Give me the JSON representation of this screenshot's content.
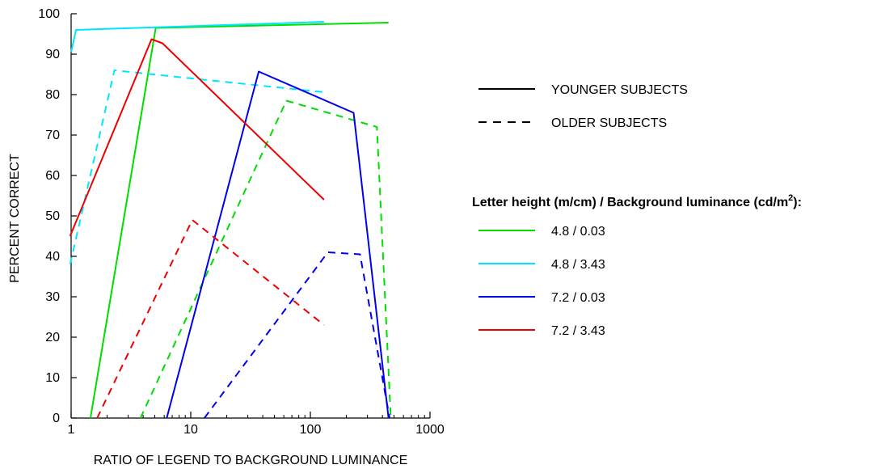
{
  "chart_data": {
    "type": "line",
    "xlabel": "RATIO OF LEGEND TO BACKGROUND LUMINANCE",
    "ylabel": "PERCENT CORRECT",
    "x_scale": "log",
    "xlim": [
      1,
      1000
    ],
    "ylim": [
      0,
      100
    ],
    "x_ticks": [
      1,
      10,
      100,
      1000
    ],
    "x_tick_labels": [
      "1",
      "10",
      "100",
      "1000"
    ],
    "y_ticks": [
      0,
      10,
      20,
      30,
      40,
      50,
      60,
      70,
      80,
      90,
      100
    ],
    "y_tick_labels": [
      "0",
      "10",
      "20",
      "30",
      "40",
      "50",
      "60",
      "70",
      "80",
      "90",
      "100"
    ],
    "grid": false,
    "legend_style": {
      "solid_label": "YOUNGER SUBJECTS",
      "dashed_label": "OLDER SUBJECTS"
    },
    "legend_heading_main": "Letter height (m/cm) / Background luminance (cd/m",
    "legend_heading_sup": "2",
    "legend_heading_end": "):",
    "legend_placement": "right",
    "series": [
      {
        "name": "4.8 / 0.03",
        "color": "#00dd00",
        "style": "solid",
        "points": [
          [
            1.45,
            0
          ],
          [
            5.1,
            96.5
          ],
          [
            450,
            97.8
          ]
        ]
      },
      {
        "name": "4.8 / 0.03",
        "color": "#00dd00",
        "style": "dashed",
        "points": [
          [
            3.8,
            0
          ],
          [
            63,
            78.5
          ],
          [
            360,
            72
          ],
          [
            470,
            0
          ]
        ]
      },
      {
        "name": "4.8 / 3.43",
        "color": "#00e5ff",
        "style": "solid",
        "points": [
          [
            1,
            90.5
          ],
          [
            1.1,
            96
          ],
          [
            130,
            98
          ]
        ]
      },
      {
        "name": "4.8 / 3.43",
        "color": "#00e5ff",
        "style": "dashed",
        "points": [
          [
            0.98,
            38
          ],
          [
            2.3,
            86
          ],
          [
            140,
            80.5
          ]
        ]
      },
      {
        "name": "7.2 / 0.03",
        "color": "#0000ee",
        "style": "solid",
        "points": [
          [
            6.3,
            0
          ],
          [
            37,
            85.7
          ],
          [
            230,
            75.5
          ],
          [
            450,
            0
          ]
        ]
      },
      {
        "name": "7.2 / 0.03",
        "color": "#0000ee",
        "style": "dashed",
        "points": [
          [
            13,
            0
          ],
          [
            140,
            41
          ],
          [
            260,
            40.5
          ],
          [
            460,
            0
          ]
        ]
      },
      {
        "name": "7.2 / 3.43",
        "color": "#ee0000",
        "style": "solid",
        "points": [
          [
            0.98,
            45
          ],
          [
            4.7,
            93.7
          ],
          [
            5.8,
            92.7
          ],
          [
            130,
            54
          ]
        ]
      },
      {
        "name": "7.2 / 3.43",
        "color": "#ee0000",
        "style": "dashed",
        "points": [
          [
            1.65,
            0
          ],
          [
            10.3,
            49
          ],
          [
            130,
            23
          ]
        ]
      }
    ],
    "legend_entries": [
      {
        "label": "4.8 / 0.03",
        "color": "#00dd00"
      },
      {
        "label": "4.8 / 3.43",
        "color": "#00e5ff"
      },
      {
        "label": "7.2 / 0.03",
        "color": "#0000ee"
      },
      {
        "label": "7.2 / 3.43",
        "color": "#ee0000"
      }
    ]
  }
}
